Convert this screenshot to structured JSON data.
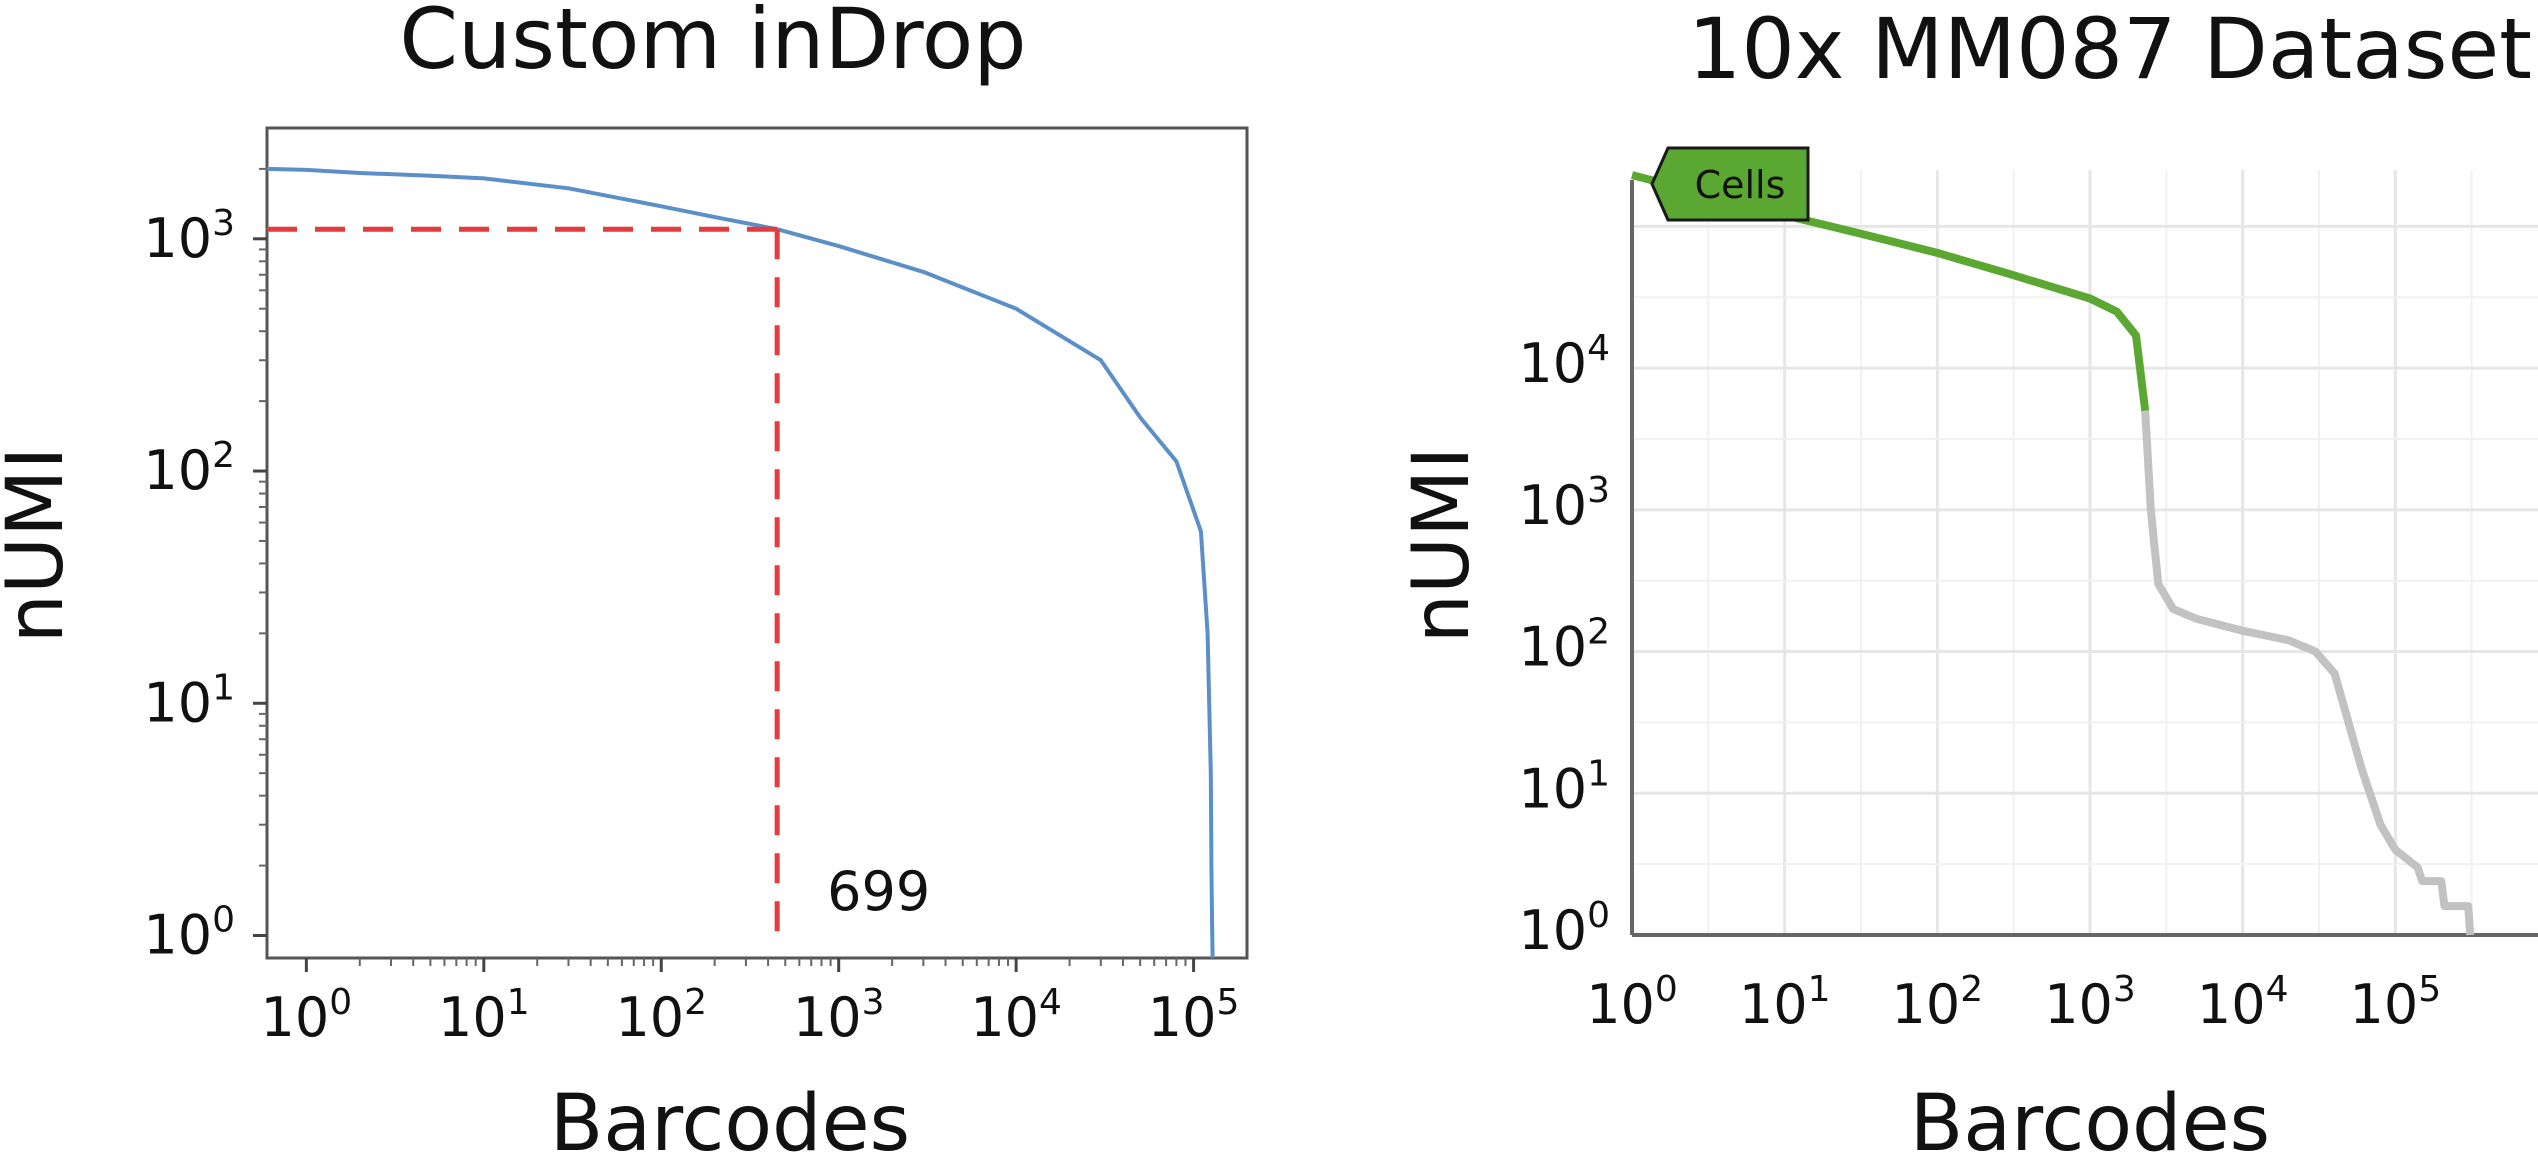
{
  "chart_data": [
    {
      "type": "line",
      "title": "Custom inDrop",
      "xlabel": "Barcodes",
      "ylabel": "nUMI",
      "x_scale": "log",
      "y_scale": "log",
      "xlim": [
        0.6,
        200000
      ],
      "ylim": [
        0.8,
        3000
      ],
      "x_ticks": [
        {
          "base": "10",
          "exp": "0",
          "value": 1
        },
        {
          "base": "10",
          "exp": "1",
          "value": 10
        },
        {
          "base": "10",
          "exp": "2",
          "value": 100
        },
        {
          "base": "10",
          "exp": "3",
          "value": 1000
        },
        {
          "base": "10",
          "exp": "4",
          "value": 10000
        },
        {
          "base": "10",
          "exp": "5",
          "value": 100000
        }
      ],
      "y_ticks": [
        {
          "base": "10",
          "exp": "0",
          "value": 1
        },
        {
          "base": "10",
          "exp": "1",
          "value": 10
        },
        {
          "base": "10",
          "exp": "2",
          "value": 100
        },
        {
          "base": "10",
          "exp": "3",
          "value": 1000
        }
      ],
      "series": [
        {
          "color": "#5b8fc7",
          "x": [
            0.6,
            1,
            2,
            5,
            10,
            30,
            100,
            200,
            450,
            1000,
            3000,
            10000,
            30000,
            50000,
            80000,
            110000,
            120000,
            125000,
            126000,
            127000,
            128000
          ],
          "y": [
            2000,
            1980,
            1920,
            1870,
            1820,
            1650,
            1380,
            1240,
            1100,
            930,
            720,
            500,
            300,
            170,
            110,
            55,
            20,
            5,
            2,
            1.2,
            0.8
          ]
        }
      ],
      "annotations": [
        {
          "type": "cutoff-lines",
          "x": 450,
          "y": 1100,
          "color": "#e8393d",
          "label": "699"
        }
      ],
      "grid": false
    },
    {
      "type": "line",
      "title": "10x MM087 Dataset",
      "xlabel": "Barcodes",
      "ylabel": "nUMI",
      "x_scale": "log",
      "y_scale": "log",
      "xlim": [
        1,
        1000000
      ],
      "ylim": [
        1,
        250000
      ],
      "x_ticks": [
        {
          "base": "10",
          "exp": "0",
          "value": 1
        },
        {
          "base": "10",
          "exp": "1",
          "value": 10
        },
        {
          "base": "10",
          "exp": "2",
          "value": 100
        },
        {
          "base": "10",
          "exp": "3",
          "value": 1000
        },
        {
          "base": "10",
          "exp": "4",
          "value": 10000
        },
        {
          "base": "10",
          "exp": "5",
          "value": 100000
        }
      ],
      "y_ticks": [
        {
          "base": "10",
          "exp": "0",
          "value": 1
        },
        {
          "base": "10",
          "exp": "1",
          "value": 10
        },
        {
          "base": "10",
          "exp": "2",
          "value": 100
        },
        {
          "base": "10",
          "exp": "3",
          "value": 1000
        },
        {
          "base": "10",
          "exp": "4",
          "value": 10000
        }
      ],
      "series": [
        {
          "name": "Cells",
          "color": "#5aa832",
          "x": [
            1,
            3,
            10,
            30,
            100,
            300,
            1000,
            1500,
            2000,
            2300
          ],
          "y": [
            230000,
            170000,
            120000,
            90000,
            65000,
            46000,
            31000,
            25000,
            17000,
            5000
          ]
        },
        {
          "color": "#c2c2c2",
          "x": [
            2300,
            2500,
            2800,
            3500,
            5000,
            10000,
            20000,
            30000,
            40000,
            50000,
            60000,
            80000,
            100000,
            140000,
            150000,
            200000,
            210000,
            300000,
            310000
          ],
          "y": [
            5000,
            1000,
            300,
            200,
            170,
            140,
            120,
            100,
            70,
            30,
            15,
            6,
            4,
            3,
            2.4,
            2.4,
            1.6,
            1.6,
            1
          ]
        }
      ],
      "grid": true
    }
  ]
}
